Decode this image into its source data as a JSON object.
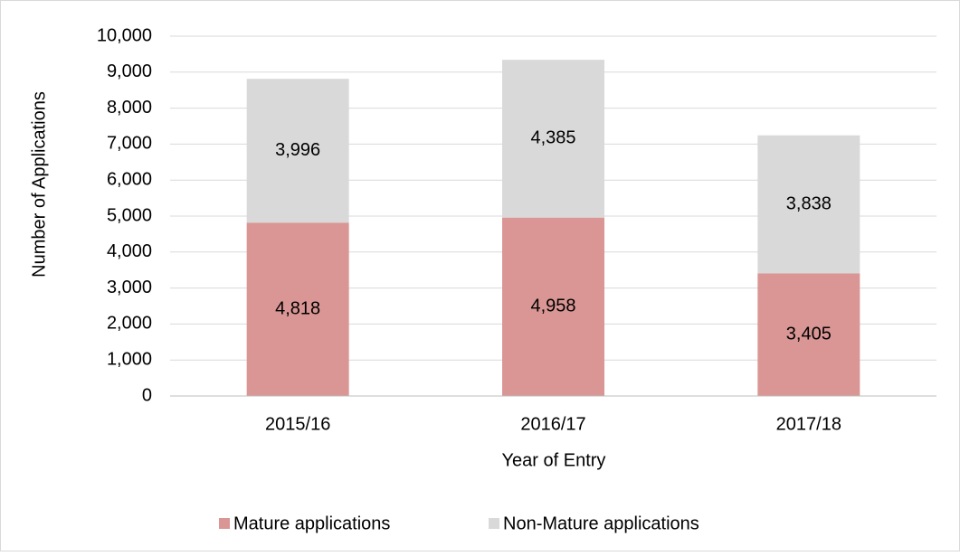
{
  "chart_data": {
    "type": "stacked_bar",
    "x_label": "Year of Entry",
    "y_label": "Number of Applications",
    "categories": [
      "2015/16",
      "2016/17",
      "2017/18"
    ],
    "series": [
      {
        "name": "Mature applications",
        "color": "#d99694",
        "values": [
          4818,
          4958,
          3405
        ],
        "value_labels": [
          "4,818",
          "4,958",
          "3,405"
        ]
      },
      {
        "name": "Non-Mature applications",
        "color": "#d9d9d9",
        "values": [
          3996,
          4385,
          3838
        ],
        "value_labels": [
          "3,996",
          "4,385",
          "3,838"
        ]
      }
    ],
    "ylim": [
      0,
      10000
    ],
    "yticks": [
      0,
      {
        "value": 1000,
        "label": "1,000"
      },
      {
        "value": 2000,
        "label": "2,000"
      },
      {
        "value": 3000,
        "label": "3,000"
      },
      {
        "value": 4000,
        "label": "4,000"
      },
      {
        "value": 5000,
        "label": "5,000"
      },
      {
        "value": 6000,
        "label": "6,000"
      },
      {
        "value": 7000,
        "label": "7,000"
      },
      {
        "value": 8000,
        "label": "8,000"
      },
      {
        "value": 9000,
        "label": "9,000"
      },
      {
        "value": 10000,
        "label": "10,000"
      }
    ],
    "grid": true,
    "legend": "bottom"
  }
}
